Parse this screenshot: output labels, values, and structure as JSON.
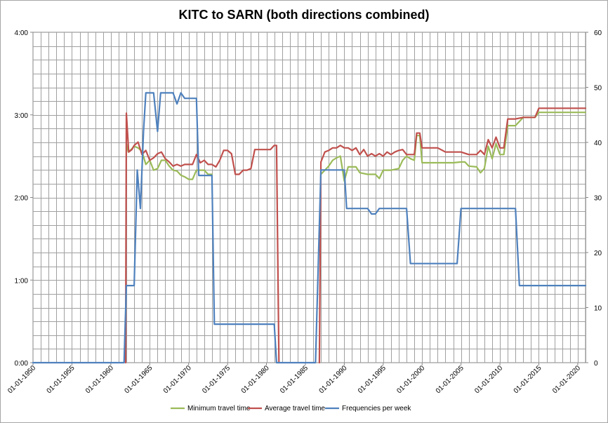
{
  "chart_data": {
    "type": "line",
    "title": "KITC to SARN (both directions combined)",
    "x_label": "",
    "y_label_left": "",
    "y_label_right": "",
    "x_range_years": [
      1950,
      2021
    ],
    "x_tick_labels": [
      "01-01-1950",
      "01-01-1955",
      "01-01-1960",
      "01-01-1965",
      "01-01-1970",
      "01-01-1975",
      "01-01-1980",
      "01-01-1985",
      "01-01-1990",
      "01-01-1995",
      "01-01-2000",
      "01-01-2005",
      "01-01-2010",
      "01-01-2015",
      "01-01-2020"
    ],
    "x_tick_years": [
      1950,
      1955,
      1960,
      1965,
      1970,
      1975,
      1980,
      1985,
      1990,
      1995,
      2000,
      2005,
      2010,
      2015,
      2020
    ],
    "y_left_range_hours": [
      0,
      4
    ],
    "y_left_tick_labels": [
      "0:00",
      "1:00",
      "2:00",
      "3:00",
      "4:00"
    ],
    "y_left_tick_values": [
      0,
      1,
      2,
      3,
      4
    ],
    "y_right_range": [
      0,
      60
    ],
    "y_right_tick_labels": [
      "0",
      "10",
      "20",
      "30",
      "40",
      "50",
      "60"
    ],
    "y_right_tick_values": [
      0,
      10,
      20,
      30,
      40,
      50,
      60
    ],
    "legend_position": "bottom",
    "series": [
      {
        "name": "Minimum travel time",
        "axis": "left",
        "color": "#9bbb59",
        "x": [
          1962,
          1962.25,
          1962.6,
          1963,
          1963.5,
          1964,
          1964.5,
          1965,
          1965.5,
          1966,
          1966.5,
          1967,
          1967.5,
          1968,
          1968.5,
          1969,
          1969.5,
          1970,
          1970.5,
          1971,
          1971.5,
          1972,
          1972.5,
          1973
        ],
        "y": [
          2.65,
          2.55,
          2.58,
          2.62,
          2.6,
          2.56,
          2.4,
          2.45,
          2.33,
          2.35,
          2.45,
          2.45,
          2.38,
          2.33,
          2.32,
          2.27,
          2.25,
          2.22,
          2.22,
          2.33,
          2.33,
          2.33,
          2.28,
          2.28
        ]
      },
      {
        "name": "Minimum travel time",
        "axis": "left",
        "color": "#9bbb59",
        "x": [
          1987,
          1987.5,
          1988,
          1988.5,
          1989,
          1989.5,
          1990,
          1990.5,
          1991,
          1991.5,
          1992,
          1993,
          1994,
          1994.5,
          1995,
          1996,
          1997,
          1997.5,
          1998,
          1998.5,
          1999,
          1999.3,
          1999.7,
          2000,
          2001,
          2002,
          2003,
          2004,
          2005,
          2005.5,
          2006,
          2007,
          2007.5,
          2008,
          2008.5,
          2009,
          2009.5,
          2010,
          2010.5,
          2011,
          2011.5,
          2012,
          2013,
          2014,
          2014.5,
          2015,
          2016,
          2017,
          2018,
          2019,
          2020,
          2021
        ],
        "y": [
          2.28,
          2.33,
          2.38,
          2.45,
          2.48,
          2.5,
          2.2,
          2.37,
          2.37,
          2.37,
          2.3,
          2.28,
          2.28,
          2.23,
          2.33,
          2.33,
          2.35,
          2.45,
          2.5,
          2.47,
          2.45,
          2.75,
          2.75,
          2.42,
          2.42,
          2.42,
          2.42,
          2.42,
          2.43,
          2.43,
          2.38,
          2.37,
          2.3,
          2.35,
          2.62,
          2.47,
          2.65,
          2.52,
          2.52,
          2.87,
          2.87,
          2.87,
          2.97,
          2.97,
          2.97,
          3.03,
          3.03,
          3.03,
          3.03,
          3.03,
          3.03,
          3.03
        ]
      },
      {
        "name": "Average travel time",
        "axis": "left",
        "color": "#c0504d",
        "x": [
          1961.9,
          1962,
          1962.3,
          1962.7,
          1963,
          1963.5,
          1964,
          1964.5,
          1965,
          1965.5,
          1966,
          1966.5,
          1967,
          1967.5,
          1968,
          1968.5,
          1969,
          1969.5,
          1970,
          1970.5,
          1971,
          1971.5,
          1972,
          1972.5,
          1973,
          1973.5,
          1974,
          1974.5,
          1975,
          1975.5,
          1976,
          1976.5,
          1977,
          1977.5,
          1978,
          1978.5,
          1979,
          1979.5,
          1980,
          1980.5,
          1981,
          1981.3,
          1981.6
        ],
        "y": [
          0.0,
          3.02,
          2.55,
          2.58,
          2.63,
          2.67,
          2.52,
          2.57,
          2.45,
          2.48,
          2.53,
          2.55,
          2.47,
          2.43,
          2.38,
          2.4,
          2.38,
          2.4,
          2.4,
          2.4,
          2.52,
          2.42,
          2.45,
          2.4,
          2.4,
          2.37,
          2.45,
          2.57,
          2.57,
          2.53,
          2.28,
          2.28,
          2.33,
          2.33,
          2.35,
          2.58,
          2.58,
          2.58,
          2.58,
          2.58,
          2.63,
          2.63,
          0.0
        ]
      },
      {
        "name": "Average travel time",
        "axis": "left",
        "color": "#c0504d",
        "x": [
          1986.8,
          1987,
          1987.5,
          1988,
          1988.5,
          1989,
          1989.5,
          1990,
          1990.5,
          1991,
          1991.5,
          1992,
          1992.5,
          1993,
          1993.5,
          1994,
          1994.5,
          1995,
          1995.5,
          1996,
          1996.5,
          1997,
          1997.5,
          1998,
          1998.5,
          1999,
          1999.3,
          1999.7,
          2000,
          2001,
          2002,
          2003,
          2004,
          2005,
          2006,
          2007,
          2007.5,
          2008,
          2008.5,
          2009,
          2009.5,
          2010,
          2010.5,
          2011,
          2011.5,
          2012,
          2013,
          2014,
          2014.5,
          2015,
          2016,
          2017,
          2018,
          2019,
          2020,
          2021
        ],
        "y": [
          0.0,
          2.43,
          2.55,
          2.57,
          2.6,
          2.6,
          2.63,
          2.6,
          2.6,
          2.57,
          2.6,
          2.52,
          2.58,
          2.5,
          2.53,
          2.5,
          2.53,
          2.5,
          2.55,
          2.52,
          2.55,
          2.57,
          2.58,
          2.52,
          2.52,
          2.52,
          2.78,
          2.78,
          2.6,
          2.6,
          2.6,
          2.55,
          2.55,
          2.55,
          2.52,
          2.52,
          2.57,
          2.52,
          2.7,
          2.6,
          2.73,
          2.6,
          2.6,
          2.95,
          2.95,
          2.95,
          2.97,
          2.97,
          2.97,
          3.08,
          3.08,
          3.08,
          3.08,
          3.08,
          3.08,
          3.08
        ]
      },
      {
        "name": "Frequencies per week",
        "axis": "right",
        "color": "#4f81bd",
        "x": [
          1950,
          1961.7,
          1962,
          1962.5,
          1963,
          1963.4,
          1963.8,
          1964.2,
          1964.5,
          1965,
          1965.5,
          1966,
          1966.4,
          1967,
          1967.5,
          1968,
          1968.5,
          1969,
          1969.5,
          1970,
          1970.5,
          1971,
          1971.3,
          1972,
          1972.5,
          1973,
          1973.3,
          1974,
          1975,
          1976,
          1977,
          1978,
          1979,
          1980,
          1980.5,
          1981,
          1981.3,
          1981.6,
          1986.3,
          1987,
          1987.5,
          1988,
          1989,
          1989.5,
          1990,
          1990.3,
          1991,
          1992,
          1993,
          1993.5,
          1994,
          1994.5,
          1995,
          1996,
          1997,
          1998,
          1998.5,
          1999,
          2000,
          2001,
          2002,
          2003,
          2004,
          2004.5,
          2005,
          2006,
          2007,
          2008,
          2009,
          2010,
          2011,
          2012,
          2012.5,
          2013,
          2014,
          2015,
          2016,
          2017,
          2018,
          2019,
          2020,
          2021
        ],
        "y": [
          0,
          0,
          14,
          14,
          14,
          35,
          28,
          42,
          49,
          49,
          49,
          42,
          49,
          49,
          49,
          49,
          47,
          49,
          48,
          48,
          48,
          48,
          34,
          34,
          34,
          34,
          7,
          7,
          7,
          7,
          7,
          7,
          7,
          7,
          7,
          7,
          0,
          0,
          0,
          35,
          35,
          35,
          35,
          35,
          35,
          28,
          28,
          28,
          28,
          27,
          27,
          28,
          28,
          28,
          28,
          28,
          18,
          18,
          18,
          18,
          18,
          18,
          18,
          18,
          28,
          28,
          28,
          28,
          28,
          28,
          28,
          28,
          14,
          14,
          14,
          14,
          14,
          14,
          14,
          14,
          14,
          14
        ]
      }
    ],
    "legend": [
      {
        "label": "Minimum travel time",
        "color": "#9bbb59"
      },
      {
        "label": "Average travel time",
        "color": "#c0504d"
      },
      {
        "label": "Frequencies per week",
        "color": "#4f81bd"
      }
    ]
  }
}
